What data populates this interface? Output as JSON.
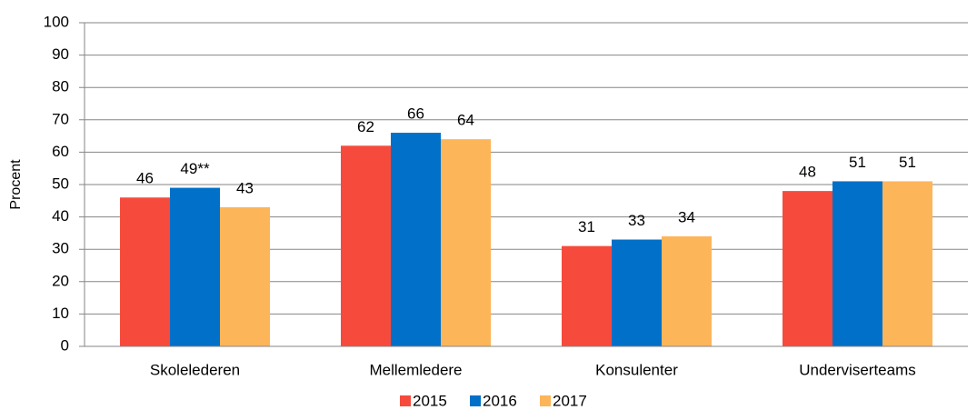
{
  "chart_data": {
    "type": "bar",
    "ylabel": "Procent",
    "categories": [
      "Skolelederen",
      "Mellemledere",
      "Konsulenter",
      "Underviserteams"
    ],
    "series": [
      {
        "name": "2015",
        "color": "#f64b3c",
        "values": [
          46,
          62,
          31,
          48
        ]
      },
      {
        "name": "2016",
        "color": "#0070c8",
        "values": [
          49,
          66,
          33,
          51
        ],
        "value_labels": [
          "49**",
          "66",
          "33",
          "51"
        ]
      },
      {
        "name": "2017",
        "color": "#fdb55a",
        "values": [
          43,
          64,
          34,
          51
        ]
      }
    ],
    "ylim": [
      0,
      100
    ],
    "yticks": [
      0,
      10,
      20,
      30,
      40,
      50,
      60,
      70,
      80,
      90,
      100
    ],
    "grid": true,
    "legend": "bottom"
  }
}
